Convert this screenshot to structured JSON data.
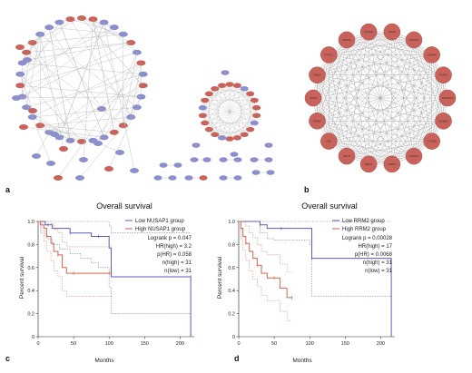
{
  "panels": {
    "a": "a",
    "b": "b",
    "c": "c",
    "d": "d"
  },
  "colors": {
    "low": "#5c5cb8",
    "high": "#d9634e",
    "node_blue": "#8c8fce",
    "node_red": "#c9625a",
    "edge": "#b9b9b9"
  },
  "network_b_genes": [
    "KIF15",
    "KIF18A",
    "CENPF",
    "TOP2A",
    "NUSAP1",
    "BUB1B",
    "CCNB1",
    "AURKA",
    "CHEK1",
    "MELK",
    "ANLN",
    "DTL",
    "RRM2",
    "CDC6",
    "MELK",
    "PTTG1",
    "CENPA",
    "KIF20A"
  ],
  "chart_data": [
    {
      "type": "line",
      "title": "Overall survival",
      "xlabel": "Months",
      "ylabel": "Percent survival",
      "xlim": [
        0,
        220
      ],
      "ylim": [
        0,
        1.0
      ],
      "xticks": [
        0,
        50,
        100,
        150,
        200
      ],
      "yticks": [
        0,
        0.2,
        0.4,
        0.6,
        0.8,
        1.0
      ],
      "yticklabels": [
        "0",
        "0.2",
        "0.4",
        "0.6",
        "0.8",
        "1.0"
      ],
      "legend_position": "top-right",
      "series": [
        {
          "name": "Low NUSAP1 group",
          "color_key": "low",
          "x": [
            0,
            5,
            10,
            14,
            20,
            30,
            45,
            60,
            75,
            85,
            100,
            103,
            215,
            215
          ],
          "y": [
            1.0,
            1.0,
            0.97,
            0.97,
            0.94,
            0.94,
            0.9,
            0.9,
            0.87,
            0.87,
            0.77,
            0.52,
            0.52,
            0.0
          ],
          "ci_upper": [
            1.0,
            1.0,
            1.0,
            1.0,
            1.0,
            1.0,
            1.0,
            1.0,
            1.0,
            1.0,
            0.96,
            0.9,
            0.9,
            0.9
          ],
          "ci_lower": [
            1.0,
            0.92,
            0.88,
            0.85,
            0.8,
            0.76,
            0.72,
            0.68,
            0.64,
            0.6,
            0.43,
            0.2,
            0.2,
            0.2
          ]
        },
        {
          "name": "High NUSAP1 group",
          "color_key": "high",
          "x": [
            0,
            3,
            8,
            12,
            18,
            22,
            28,
            34,
            40,
            50,
            60,
            75,
            100,
            104
          ],
          "y": [
            1.0,
            0.97,
            0.94,
            0.87,
            0.81,
            0.74,
            0.71,
            0.6,
            0.55,
            0.55,
            0.55,
            0.55,
            0.55,
            0.55
          ],
          "ci_upper": [
            1.0,
            1.0,
            1.0,
            1.0,
            0.98,
            0.93,
            0.9,
            0.82,
            0.78,
            0.78,
            0.78,
            0.78,
            0.78,
            0.78
          ],
          "ci_lower": [
            1.0,
            0.9,
            0.83,
            0.74,
            0.66,
            0.57,
            0.52,
            0.4,
            0.35,
            0.35,
            0.35,
            0.35,
            0.35,
            0.35
          ]
        }
      ],
      "stats": [
        "Logrank p = 0.047",
        "HR(high) = 3.2",
        "p(HR) = 0.058",
        "n(high) = 31",
        "n(low) = 31"
      ]
    },
    {
      "type": "line",
      "title": "Overall survival",
      "xlabel": "Months",
      "ylabel": "Percent survival",
      "xlim": [
        0,
        220
      ],
      "ylim": [
        0,
        1.0
      ],
      "xticks": [
        0,
        50,
        100,
        150,
        200
      ],
      "yticks": [
        0,
        0.2,
        0.4,
        0.6,
        0.8,
        1.0
      ],
      "yticklabels": [
        "0",
        "0.2",
        "0.4",
        "0.6",
        "0.8",
        "1.0"
      ],
      "legend_position": "top-right",
      "series": [
        {
          "name": "Low RRM2 group",
          "color_key": "low",
          "x": [
            0,
            10,
            20,
            30,
            40,
            50,
            60,
            80,
            100,
            103,
            215,
            215
          ],
          "y": [
            1.0,
            1.0,
            1.0,
            0.97,
            0.94,
            0.94,
            0.94,
            0.94,
            0.94,
            0.68,
            0.68,
            0.0
          ],
          "ci_upper": [
            1.0,
            1.0,
            1.0,
            1.0,
            1.0,
            1.0,
            1.0,
            1.0,
            1.0,
            1.0,
            1.0,
            1.0
          ],
          "ci_lower": [
            1.0,
            1.0,
            1.0,
            0.9,
            0.85,
            0.84,
            0.84,
            0.84,
            0.8,
            0.35,
            0.35,
            0.35
          ]
        },
        {
          "name": "High RRM2 group",
          "color_key": "high",
          "x": [
            0,
            3,
            6,
            10,
            15,
            20,
            26,
            32,
            40,
            50,
            58,
            68,
            75
          ],
          "y": [
            1.0,
            0.94,
            0.87,
            0.81,
            0.74,
            0.68,
            0.62,
            0.55,
            0.51,
            0.51,
            0.42,
            0.34,
            0.34
          ],
          "ci_upper": [
            1.0,
            1.0,
            1.0,
            0.96,
            0.9,
            0.86,
            0.8,
            0.74,
            0.71,
            0.71,
            0.63,
            0.56,
            0.56
          ],
          "ci_lower": [
            1.0,
            0.85,
            0.75,
            0.66,
            0.57,
            0.5,
            0.44,
            0.36,
            0.31,
            0.31,
            0.22,
            0.14,
            0.14
          ]
        }
      ],
      "stats": [
        "Logrank p = 0.00028",
        "HR(high) = 17",
        "p(HR) = 0.0068",
        "n(high) = 31",
        "n(low) = 31"
      ]
    }
  ]
}
